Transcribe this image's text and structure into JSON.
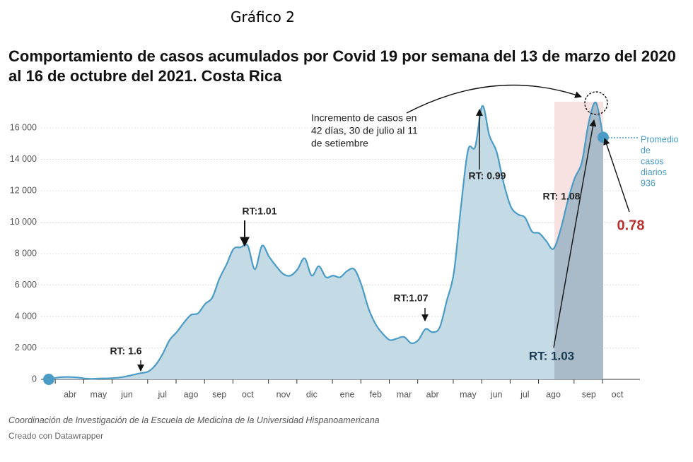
{
  "chart_data": {
    "type": "area",
    "header": "Gráfico 2",
    "title": "Comportamiento de casos acumulados por Covid 19 por semana del 13 de marzo del 2020 al 16 de octubre del 2021. Costa Rica",
    "source": "Coordinación de Investigación de la Escuela de Medicina de la Universidad Hispanoamericana",
    "credit": "Creado con Datawrapper",
    "categories": [
      null,
      null,
      null,
      "abr",
      null,
      null,
      null,
      "may",
      null,
      null,
      null,
      "jun",
      null,
      null,
      null,
      null,
      "jul",
      null,
      null,
      null,
      "ago",
      null,
      null,
      null,
      "sep",
      null,
      null,
      null,
      "oct",
      null,
      null,
      null,
      null,
      "nov",
      null,
      null,
      null,
      "dic",
      null,
      null,
      null,
      null,
      "ene",
      null,
      null,
      null,
      "feb",
      null,
      null,
      null,
      "mar",
      null,
      null,
      null,
      "abr",
      null,
      null,
      null,
      null,
      "may",
      null,
      null,
      null,
      "jun",
      null,
      null,
      null,
      "jul",
      null,
      null,
      null,
      "ago",
      null,
      null,
      null,
      null,
      "sep",
      null,
      null,
      null,
      "oct"
    ],
    "series": [
      {
        "name": "Casos",
        "color": "#4a9cc7",
        "values": [
          0,
          100,
          150,
          150,
          120,
          60,
          30,
          50,
          60,
          80,
          120,
          200,
          300,
          400,
          500,
          900,
          1600,
          2500,
          3000,
          3600,
          4100,
          4200,
          4800,
          5200,
          6400,
          7300,
          8300,
          8400,
          8500,
          7000,
          8500,
          7800,
          7200,
          6700,
          6600,
          7000,
          7700,
          6600,
          7200,
          6500,
          6600,
          6500,
          6900,
          7000,
          6000,
          4500,
          3500,
          2900,
          2500,
          2600,
          2700,
          2300,
          2500,
          3200,
          3000,
          3300,
          5000,
          6800,
          11000,
          14600,
          14800,
          17400,
          15500,
          14500,
          12500,
          11000,
          10500,
          10300,
          9400,
          9300,
          8800,
          8300,
          9500,
          11300,
          12800,
          13800,
          16400,
          17600,
          15400,
          null,
          null
        ]
      }
    ],
    "ylim": [
      0,
      16800
    ],
    "yticks": [
      0,
      {
        "value": 2000,
        "label": "2 000"
      },
      {
        "value": 4000,
        "label": "4 000"
      },
      {
        "value": 6000,
        "label": "6 000"
      },
      {
        "value": 8000,
        "label": "8 000"
      },
      {
        "value": 10000,
        "label": "10 000"
      },
      {
        "value": 12000,
        "label": "12 000"
      },
      {
        "value": 14000,
        "label": "14 000"
      },
      {
        "value": 16000,
        "label": "16 000"
      }
    ],
    "grid": true,
    "annotations": [
      {
        "lines": [
          "Incremento de casos en",
          "42 días, 30 de julio al 11",
          "de setiembre"
        ]
      },
      {
        "text": "RT: 1.6"
      },
      {
        "text": "RT:1.01"
      },
      {
        "text": "RT:1.07"
      },
      {
        "text": "RT: 0.99"
      },
      {
        "text": "RT: 1.08"
      },
      {
        "text": "RT: 1.03"
      },
      {
        "text": "0.78"
      },
      {
        "lines": [
          "Promedio",
          "de",
          "casos",
          "diarios",
          "936"
        ]
      }
    ]
  }
}
